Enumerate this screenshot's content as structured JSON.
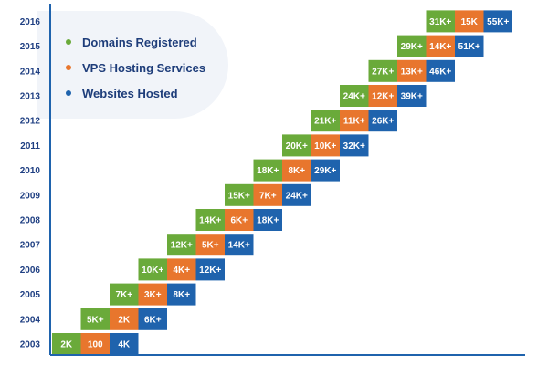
{
  "chart_data": {
    "type": "table",
    "title": "",
    "xlabel": "",
    "ylabel": "",
    "categories": [
      "2003",
      "2004",
      "2005",
      "2006",
      "2007",
      "2008",
      "2009",
      "2010",
      "2011",
      "2012",
      "2013",
      "2014",
      "2015",
      "2016"
    ],
    "legend_position": "top-left",
    "series": [
      {
        "name": "Domains Registered",
        "color": "#6aaa3a",
        "labels": [
          "2K",
          "5K+",
          "7K+",
          "10K+",
          "12K+",
          "14K+",
          "15K+",
          "18K+",
          "20K+",
          "21K+",
          "24K+",
          "27K+",
          "29K+",
          "31K+"
        ]
      },
      {
        "name": "VPS Hosting Services",
        "color": "#e8762d",
        "labels": [
          "100",
          "2K",
          "3K+",
          "4K+",
          "5K+",
          "6K+",
          "7K+",
          "8K+",
          "10K+",
          "11K+",
          "12K+",
          "13K+",
          "14K+",
          "15K"
        ]
      },
      {
        "name": "Websites Hosted",
        "color": "#1f63ad",
        "labels": [
          "4K",
          "6K+",
          "8K+",
          "12K+",
          "14K+",
          "18K+",
          "24K+",
          "29K+",
          "32K+",
          "26K+",
          "39K+",
          "46K+",
          "51K+",
          "55K+"
        ]
      }
    ]
  },
  "colors": {
    "axis": "#1f63ad",
    "tick_text": "#1f3f82",
    "legend_text": "#1e3d7a"
  }
}
